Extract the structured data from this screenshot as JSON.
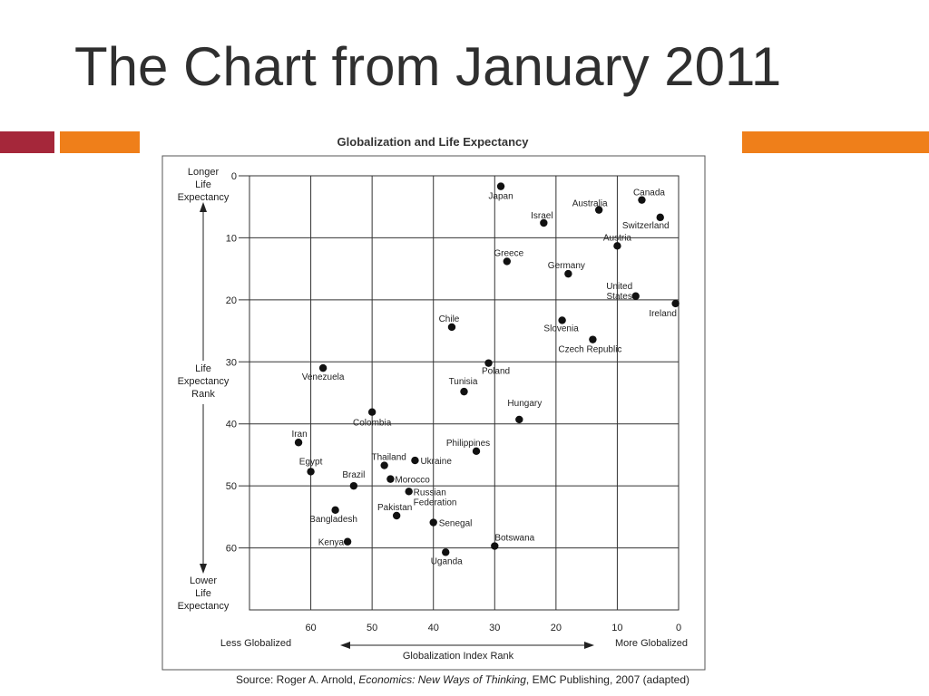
{
  "slide": {
    "title": "The Chart from January 2011",
    "colors": {
      "band_red": "#a5273a",
      "band_orange": "#ef7f1a",
      "title_text": "#2f2f2f"
    }
  },
  "chart_data": {
    "type": "scatter",
    "title": "Globalization and Life Expectancy",
    "xlabel": "Globalization Index Rank",
    "xlabel_left": "Less Globalized",
    "xlabel_right": "More Globalized",
    "ylabel": [
      "Life",
      "Expectancy",
      "Rank"
    ],
    "ylabel_top": [
      "Longer",
      "Life",
      "Expectancy"
    ],
    "ylabel_bottom": [
      "Lower",
      "Life",
      "Expectancy"
    ],
    "xlim": [
      70,
      0
    ],
    "ylim": [
      0,
      70
    ],
    "x_reversed": true,
    "y_reversed": true,
    "grid": true,
    "x_ticks": [
      60,
      50,
      40,
      30,
      20,
      10,
      0
    ],
    "y_ticks": [
      0,
      10,
      20,
      30,
      40,
      50,
      60
    ],
    "source": {
      "prefix": "Source: Roger A. Arnold, ",
      "italic": "Economics: New Ways of Thinking",
      "suffix": ", EMC Publishing, 2007 (adapted)"
    },
    "points": [
      {
        "label": [
          "Japan"
        ],
        "x": 29,
        "y": 1.7
      },
      {
        "label": [
          "Canada"
        ],
        "x": 6,
        "y": 3.9
      },
      {
        "label": [
          "Australia"
        ],
        "x": 13,
        "y": 5.5
      },
      {
        "label": [
          "Israel"
        ],
        "x": 22,
        "y": 7.6
      },
      {
        "label": [
          "Switzerland"
        ],
        "x": 3,
        "y": 6.7
      },
      {
        "label": [
          "Austria"
        ],
        "x": 10,
        "y": 11.3
      },
      {
        "label": [
          "Greece"
        ],
        "x": 28,
        "y": 13.8
      },
      {
        "label": [
          "Germany"
        ],
        "x": 18,
        "y": 15.8
      },
      {
        "label": [
          "United",
          "States"
        ],
        "x": 7,
        "y": 19.4
      },
      {
        "label": [
          "Ireland"
        ],
        "x": 0.5,
        "y": 20.6
      },
      {
        "label": [
          "Chile"
        ],
        "x": 37,
        "y": 24.4
      },
      {
        "label": [
          "Slovenia"
        ],
        "x": 19,
        "y": 23.3
      },
      {
        "label": [
          "Czech Republic"
        ],
        "x": 14,
        "y": 26.4
      },
      {
        "label": [
          "Venezuela"
        ],
        "x": 58,
        "y": 31.0
      },
      {
        "label": [
          "Poland"
        ],
        "x": 31,
        "y": 30.2
      },
      {
        "label": [
          "Tunisia"
        ],
        "x": 35,
        "y": 34.8
      },
      {
        "label": [
          "Hungary"
        ],
        "x": 26,
        "y": 39.3
      },
      {
        "label": [
          "Colombia"
        ],
        "x": 50,
        "y": 38.1
      },
      {
        "label": [
          "Iran"
        ],
        "x": 62,
        "y": 43.0
      },
      {
        "label": [
          "Philippines"
        ],
        "x": 33,
        "y": 44.4
      },
      {
        "label": [
          "Egypt"
        ],
        "x": 60,
        "y": 47.7
      },
      {
        "label": [
          "Thailand"
        ],
        "x": 48,
        "y": 46.7
      },
      {
        "label": [
          "Ukraine"
        ],
        "x": 43,
        "y": 45.9
      },
      {
        "label": [
          "Brazil"
        ],
        "x": 53,
        "y": 50.0
      },
      {
        "label": [
          "Morocco"
        ],
        "x": 47,
        "y": 48.9
      },
      {
        "label": [
          "Russian",
          "Federation"
        ],
        "x": 44,
        "y": 50.9
      },
      {
        "label": [
          "Bangladesh"
        ],
        "x": 56,
        "y": 53.9
      },
      {
        "label": [
          "Pakistan"
        ],
        "x": 46,
        "y": 54.8
      },
      {
        "label": [
          "Senegal"
        ],
        "x": 40,
        "y": 55.9
      },
      {
        "label": [
          "Kenya"
        ],
        "x": 54,
        "y": 59.0
      },
      {
        "label": [
          "Botswana"
        ],
        "x": 30,
        "y": 59.7
      },
      {
        "label": [
          "Uganda"
        ],
        "x": 38,
        "y": 60.7
      }
    ]
  }
}
